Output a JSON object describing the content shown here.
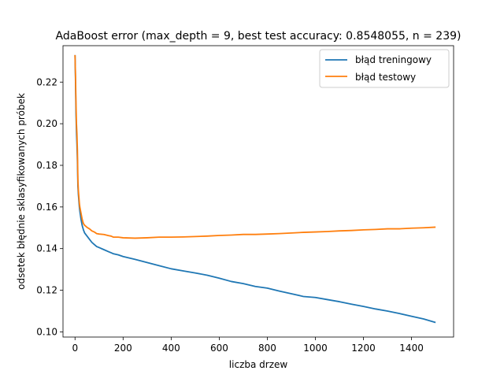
{
  "chart_data": {
    "type": "line",
    "title": "AdaBoost error (max_depth = 9, best test accuracy: 0.8548055, n = 239)",
    "xlabel": "liczba drzew",
    "ylabel": "odsetek błędnie sklasyfikowanych próbek",
    "xlim": [
      -50,
      1575
    ],
    "ylim": [
      0.0975,
      0.2375
    ],
    "xticks": [
      0,
      200,
      400,
      600,
      800,
      1000,
      1200,
      1400
    ],
    "yticks": [
      0.1,
      0.12,
      0.14,
      0.16,
      0.18,
      0.2,
      0.22
    ],
    "ytick_format": 2,
    "grid": false,
    "legend_position": "top-right",
    "series": [
      {
        "name": "błąd treningowy",
        "color": "#1f77b4",
        "x": [
          0,
          2,
          4,
          6,
          8,
          10,
          12,
          14,
          16,
          18,
          20,
          25,
          30,
          35,
          40,
          50,
          60,
          70,
          80,
          90,
          100,
          120,
          140,
          150,
          160,
          180,
          200,
          250,
          300,
          350,
          400,
          450,
          500,
          550,
          600,
          650,
          700,
          750,
          800,
          850,
          900,
          950,
          1000,
          1050,
          1100,
          1150,
          1200,
          1250,
          1300,
          1350,
          1400,
          1450,
          1500
        ],
        "y": [
          0.233,
          0.221,
          0.205,
          0.196,
          0.19,
          0.182,
          0.17,
          0.166,
          0.163,
          0.16,
          0.158,
          0.154,
          0.151,
          0.149,
          0.1475,
          0.146,
          0.1445,
          0.143,
          0.142,
          0.141,
          0.1405,
          0.1395,
          0.1385,
          0.138,
          0.1375,
          0.137,
          0.1362,
          0.1348,
          0.1333,
          0.1318,
          0.1303,
          0.1293,
          0.1283,
          0.1272,
          0.1258,
          0.1242,
          0.1232,
          0.1218,
          0.121,
          0.1196,
          0.1183,
          0.117,
          0.1165,
          0.1155,
          0.1145,
          0.1133,
          0.1122,
          0.111,
          0.11,
          0.1088,
          0.1075,
          0.1062,
          0.1045
        ]
      },
      {
        "name": "błąd testowy",
        "color": "#ff7f0e",
        "x": [
          0,
          2,
          4,
          6,
          8,
          10,
          12,
          14,
          16,
          18,
          20,
          25,
          30,
          35,
          40,
          50,
          60,
          70,
          80,
          90,
          100,
          120,
          140,
          150,
          160,
          180,
          200,
          250,
          300,
          350,
          400,
          450,
          500,
          550,
          600,
          650,
          700,
          750,
          800,
          850,
          900,
          950,
          1000,
          1050,
          1100,
          1150,
          1200,
          1250,
          1300,
          1350,
          1400,
          1450,
          1500
        ],
        "y": [
          0.233,
          0.223,
          0.21,
          0.2,
          0.195,
          0.187,
          0.173,
          0.168,
          0.165,
          0.162,
          0.16,
          0.157,
          0.154,
          0.152,
          0.1512,
          0.1502,
          0.1495,
          0.1485,
          0.148,
          0.1472,
          0.147,
          0.1468,
          0.1462,
          0.146,
          0.1455,
          0.1455,
          0.1452,
          0.145,
          0.1452,
          0.1455,
          0.1455,
          0.1456,
          0.1458,
          0.146,
          0.1463,
          0.1465,
          0.1468,
          0.1468,
          0.147,
          0.1472,
          0.1475,
          0.1478,
          0.148,
          0.1482,
          0.1485,
          0.1487,
          0.149,
          0.1492,
          0.1495,
          0.1495,
          0.1498,
          0.15,
          0.1503
        ]
      }
    ]
  }
}
